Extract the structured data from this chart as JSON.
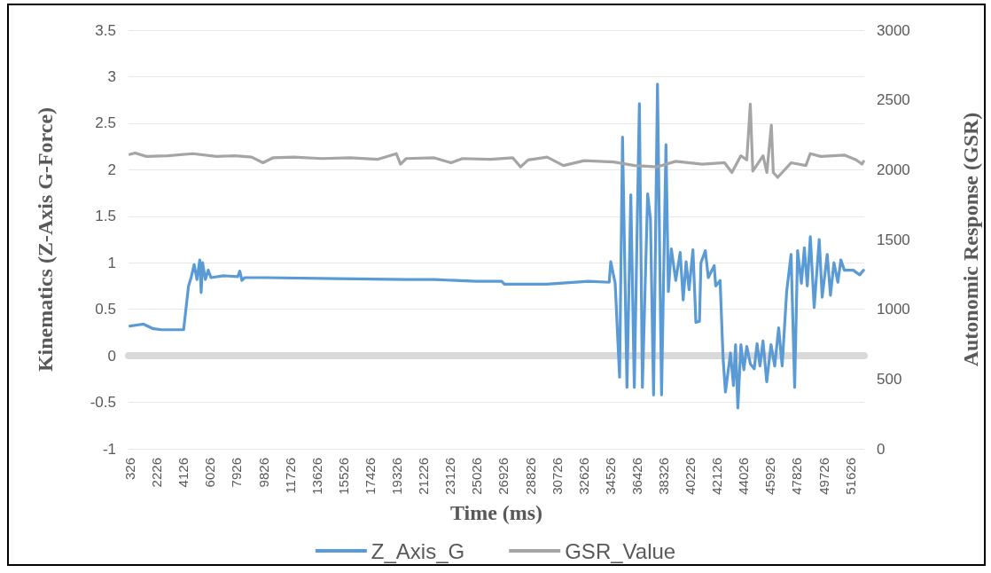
{
  "chart_data": {
    "type": "line",
    "xlabel": "Time (ms)",
    "ylabel": "Kinematics (Z-Axis G-Force)",
    "y2label": "Autonomic Response (GSR)",
    "xlim": [
      226,
      52626
    ],
    "xticks": [
      326,
      2226,
      4126,
      6026,
      7926,
      9826,
      11726,
      13626,
      15526,
      17426,
      19326,
      21226,
      23126,
      25026,
      26926,
      28826,
      30726,
      32626,
      34526,
      36426,
      38326,
      40226,
      42126,
      44026,
      45926,
      47826,
      49726,
      51626
    ],
    "ylim": [
      -1,
      3.5
    ],
    "yticks": [
      -1,
      -0.5,
      0,
      0.5,
      1,
      1.5,
      2,
      2.5,
      3,
      3.5
    ],
    "y2lim": [
      0,
      3000
    ],
    "y2ticks": [
      0,
      500,
      1000,
      1500,
      2000,
      2500,
      3000
    ],
    "grid": "y",
    "legend": "bottom",
    "marker": "none",
    "line_style": "solid",
    "series": [
      {
        "name": "Z_Axis_G",
        "color": "#5b9bd5",
        "x": [
          326,
          800,
          1300,
          2000,
          2600,
          3500,
          4150,
          4500,
          4700,
          4900,
          5100,
          5300,
          5400,
          5500,
          5700,
          5900,
          6100,
          7000,
          8000,
          8150,
          8300,
          8500,
          10000,
          15000,
          20000,
          22000,
          25000,
          26800,
          27000,
          30000,
          33000,
          34463,
          34570,
          34886,
          35200,
          35410,
          35725,
          36000,
          36250,
          36610,
          36826,
          37200,
          37400,
          37620,
          37900,
          38190,
          38505,
          38675,
          38886,
          39200,
          39517,
          39730,
          39940,
          40150,
          40425,
          40636,
          40890,
          40995,
          41310,
          41520,
          41940,
          42045,
          42360,
          42570,
          42740,
          43100,
          43310,
          43460,
          43625,
          43840,
          44050,
          44260,
          44520,
          44790,
          44995,
          45200,
          45415,
          45680,
          45985,
          46250,
          46530,
          46780,
          47100,
          47415,
          47670,
          47880,
          48150,
          48360,
          48570,
          48785,
          49060,
          49420,
          49630,
          49990,
          50220,
          50470,
          50745,
          50960,
          51210,
          51840,
          52300,
          52575
        ],
        "values": [
          0.32,
          0.33,
          0.34,
          0.29,
          0.28,
          0.28,
          0.28,
          0.75,
          0.85,
          0.98,
          0.82,
          1.03,
          0.68,
          1.0,
          0.82,
          0.92,
          0.84,
          0.86,
          0.85,
          0.91,
          0.81,
          0.84,
          0.84,
          0.83,
          0.82,
          0.82,
          0.8,
          0.8,
          0.77,
          0.77,
          0.8,
          0.79,
          1.01,
          0.78,
          -0.23,
          2.35,
          -0.34,
          1.73,
          -0.34,
          2.71,
          -0.34,
          1.74,
          1.47,
          -0.42,
          2.92,
          -0.42,
          2.27,
          0.69,
          1.15,
          0.81,
          1.11,
          0.6,
          1.01,
          0.71,
          1.14,
          0.36,
          0.37,
          1.0,
          1.13,
          0.84,
          0.97,
          0.75,
          0.81,
          -0.02,
          -0.39,
          0.03,
          -0.32,
          0.12,
          -0.56,
          0.12,
          -0.15,
          0.1,
          -0.09,
          -0.14,
          0.13,
          -0.11,
          0.16,
          -0.28,
          0.12,
          -0.11,
          0.3,
          -0.11,
          0.69,
          1.09,
          -0.34,
          1.13,
          0.78,
          1.16,
          0.75,
          1.28,
          0.52,
          1.25,
          0.63,
          1.09,
          0.65,
          1.0,
          0.79,
          1.03,
          0.92,
          0.92,
          0.87,
          0.92
        ]
      },
      {
        "name": "GSR_Value",
        "color": "#a5a5a5",
        "axis": "y2",
        "x": [
          326,
          700,
          1500,
          3000,
          4800,
          6500,
          7800,
          9000,
          9800,
          10500,
          12000,
          14000,
          16000,
          18000,
          19300,
          19600,
          20000,
          22000,
          23200,
          24000,
          26000,
          27600,
          28150,
          28680,
          30040,
          31200,
          32680,
          34790,
          36270,
          37850,
          39200,
          41100,
          42680,
          43200,
          43840,
          44260,
          44510,
          44690,
          45420,
          45690,
          46010,
          46150,
          46460,
          47420,
          48470,
          48780,
          49530,
          51210,
          52050,
          52470,
          52575
        ],
        "values": [
          2110,
          2120,
          2095,
          2100,
          2115,
          2095,
          2100,
          2090,
          2050,
          2085,
          2090,
          2080,
          2085,
          2075,
          2115,
          2040,
          2080,
          2085,
          2050,
          2080,
          2075,
          2085,
          2020,
          2070,
          2090,
          2030,
          2065,
          2055,
          2030,
          2020,
          2060,
          2040,
          2050,
          1980,
          2100,
          2070,
          2470,
          1990,
          2100,
          1980,
          2320,
          1980,
          1945,
          2050,
          2030,
          2115,
          2095,
          2105,
          2070,
          2040,
          2060
        ]
      }
    ]
  }
}
